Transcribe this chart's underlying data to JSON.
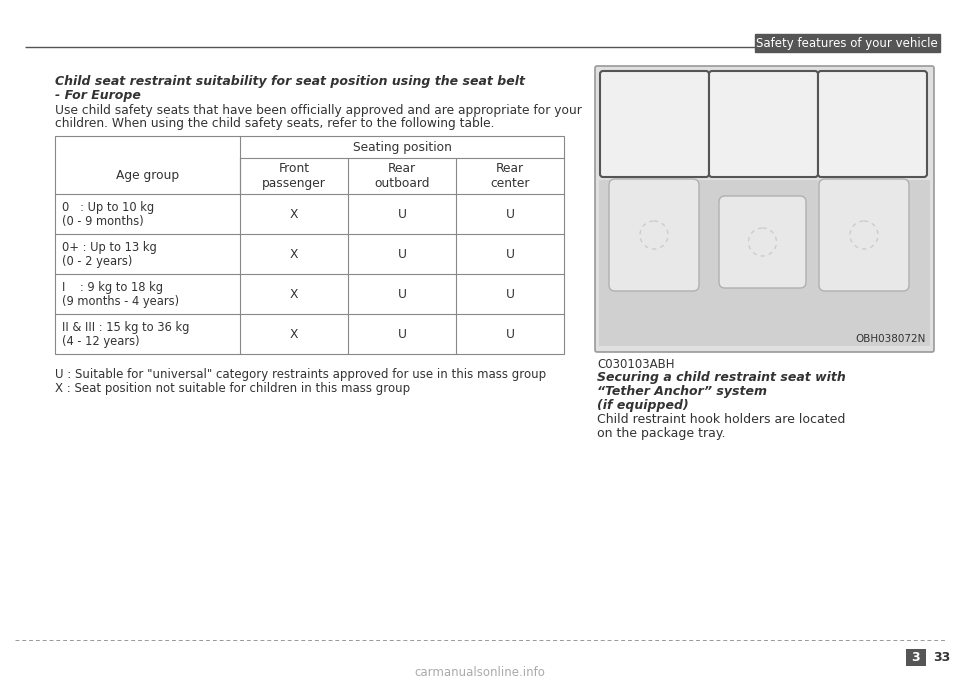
{
  "header_text": "Safety features of your vehicle",
  "header_line_color": "#555555",
  "header_bar_color": "#555555",
  "bg_color": "#ffffff",
  "title_line1": "Child seat restraint suitability for seat position using the seat belt",
  "title_line2": "- For Europe",
  "intro_line1": "Use child safety seats that have been officially approved and are appropriate for your",
  "intro_line2": "children. When using the child safety seats, refer to the following table.",
  "table_header_col1": "Age group",
  "table_header_seating": "Seating position",
  "table_col_headers": [
    "Front\npassenger",
    "Rear\noutboard",
    "Rear\ncenter"
  ],
  "table_rows": [
    [
      "0   : Up to 10 kg\n(0 - 9 months)",
      "X",
      "U",
      "U"
    ],
    [
      "0+ : Up to 13 kg\n(0 - 2 years)",
      "X",
      "U",
      "U"
    ],
    [
      "I    : 9 kg to 18 kg\n(9 months - 4 years)",
      "X",
      "U",
      "U"
    ],
    [
      "II & III : 15 kg to 36 kg\n(4 - 12 years)",
      "X",
      "U",
      "U"
    ]
  ],
  "footnote1": "U : Suitable for \"universal\" category restraints approved for use in this mass group",
  "footnote2": "X : Seat position not suitable for children in this mass group",
  "right_caption_code": "C030103ABH",
  "right_caption_bold_lines": [
    "Securing a child restraint seat with",
    "“Tether Anchor” system",
    "(if equipped)"
  ],
  "right_caption_normal_lines": [
    "Child restraint hook holders are located",
    "on the package tray."
  ],
  "image_label": "OBH038072N",
  "footer_dashes_color": "#999999",
  "text_color": "#333333",
  "table_line_color": "#888888",
  "page_num_bg": "#555555",
  "page_num_section": "3",
  "page_num_page": "33",
  "watermark": "carmanualsonline.info"
}
